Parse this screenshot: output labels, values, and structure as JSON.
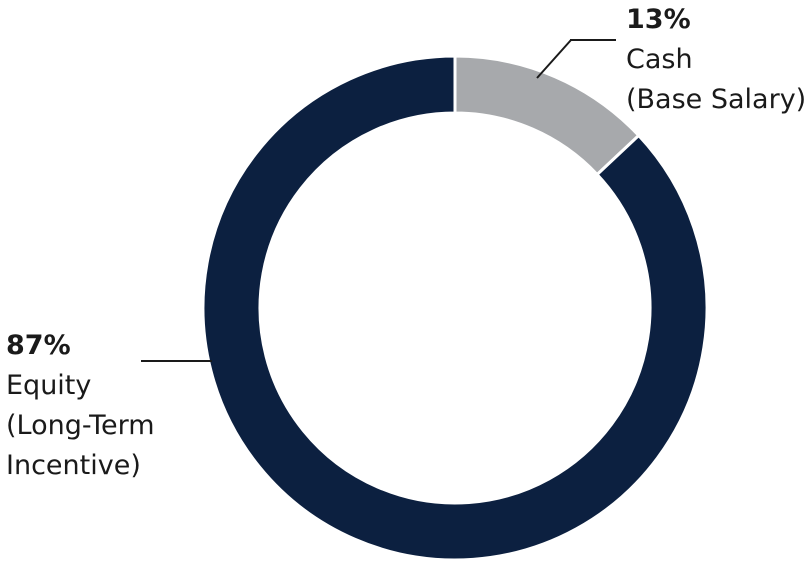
{
  "chart_data": {
    "type": "pie",
    "style": "donut",
    "slices": [
      {
        "name_lines": [
          "Cash",
          "(Base Salary)"
        ],
        "value": 13,
        "value_label": "13%",
        "color": "#a7a9ac"
      },
      {
        "name_lines": [
          "Equity",
          "(Long-Term",
          "Incentive)"
        ],
        "value": 87,
        "value_label": "87%",
        "color": "#0c2040"
      }
    ],
    "legend": "none"
  },
  "colors": {
    "background": "#ffffff",
    "separator": "#ffffff",
    "leader_line": "#1a1a1a"
  }
}
